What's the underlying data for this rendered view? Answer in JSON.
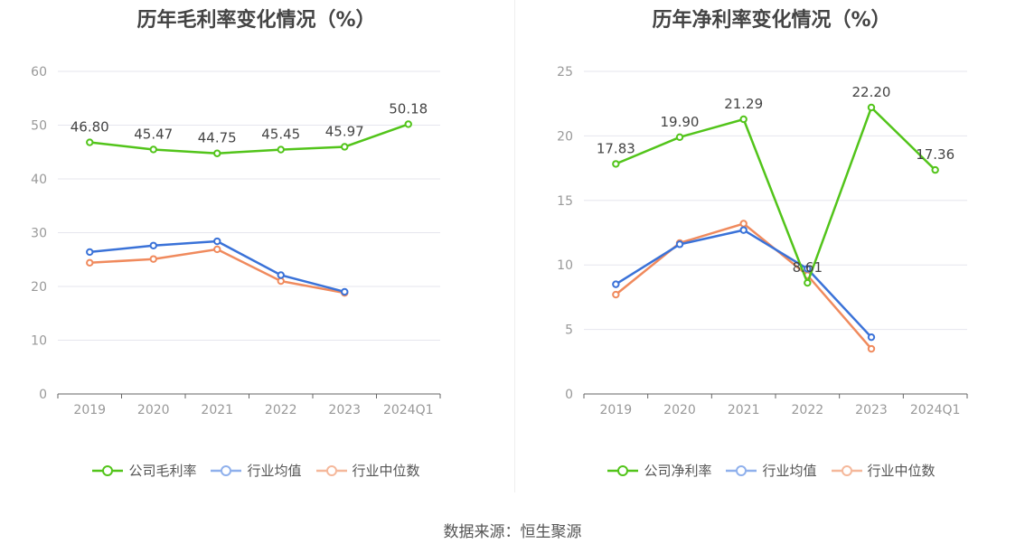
{
  "source_label": "数据来源：恒生聚源",
  "chart_data": [
    {
      "type": "line",
      "title": "历年毛利率变化情况（%）",
      "categories": [
        "2019",
        "2020",
        "2021",
        "2022",
        "2023",
        "2024Q1"
      ],
      "ylim": [
        0,
        60
      ],
      "yticks": [
        "0",
        "10",
        "20",
        "30",
        "40",
        "50",
        "60"
      ],
      "grid": true,
      "legend_position": "bottom",
      "series": [
        {
          "name": "公司毛利率",
          "color": "#52c41a",
          "values": [
            46.8,
            45.47,
            44.75,
            45.45,
            45.97,
            50.18
          ],
          "labels": [
            "46.80",
            "45.47",
            "44.75",
            "45.45",
            "45.97",
            "50.18"
          ]
        },
        {
          "name": "行业均值",
          "color": "#3a72d8",
          "values": [
            26.4,
            27.6,
            28.4,
            22.1,
            19.0,
            null
          ],
          "labels": []
        },
        {
          "name": "行业中位数",
          "color": "#f08a5d",
          "values": [
            24.4,
            25.1,
            26.9,
            21.0,
            18.8,
            null
          ],
          "labels": []
        }
      ]
    },
    {
      "type": "line",
      "title": "历年净利率变化情况（%）",
      "categories": [
        "2019",
        "2020",
        "2021",
        "2022",
        "2023",
        "2024Q1"
      ],
      "ylim": [
        0,
        25
      ],
      "yticks": [
        "0",
        "5",
        "10",
        "15",
        "20",
        "25"
      ],
      "grid": true,
      "legend_position": "bottom",
      "series": [
        {
          "name": "公司净利率",
          "color": "#52c41a",
          "values": [
            17.83,
            19.9,
            21.29,
            8.61,
            22.2,
            17.36
          ],
          "labels": [
            "17.83",
            "19.90",
            "21.29",
            "8.61",
            "22.20",
            "17.36"
          ]
        },
        {
          "name": "行业均值",
          "color": "#3a72d8",
          "values": [
            8.5,
            11.6,
            12.7,
            9.7,
            4.4,
            null
          ],
          "labels": []
        },
        {
          "name": "行业中位数",
          "color": "#f08a5d",
          "values": [
            7.7,
            11.7,
            13.2,
            9.2,
            3.5,
            null
          ],
          "labels": []
        }
      ]
    }
  ]
}
